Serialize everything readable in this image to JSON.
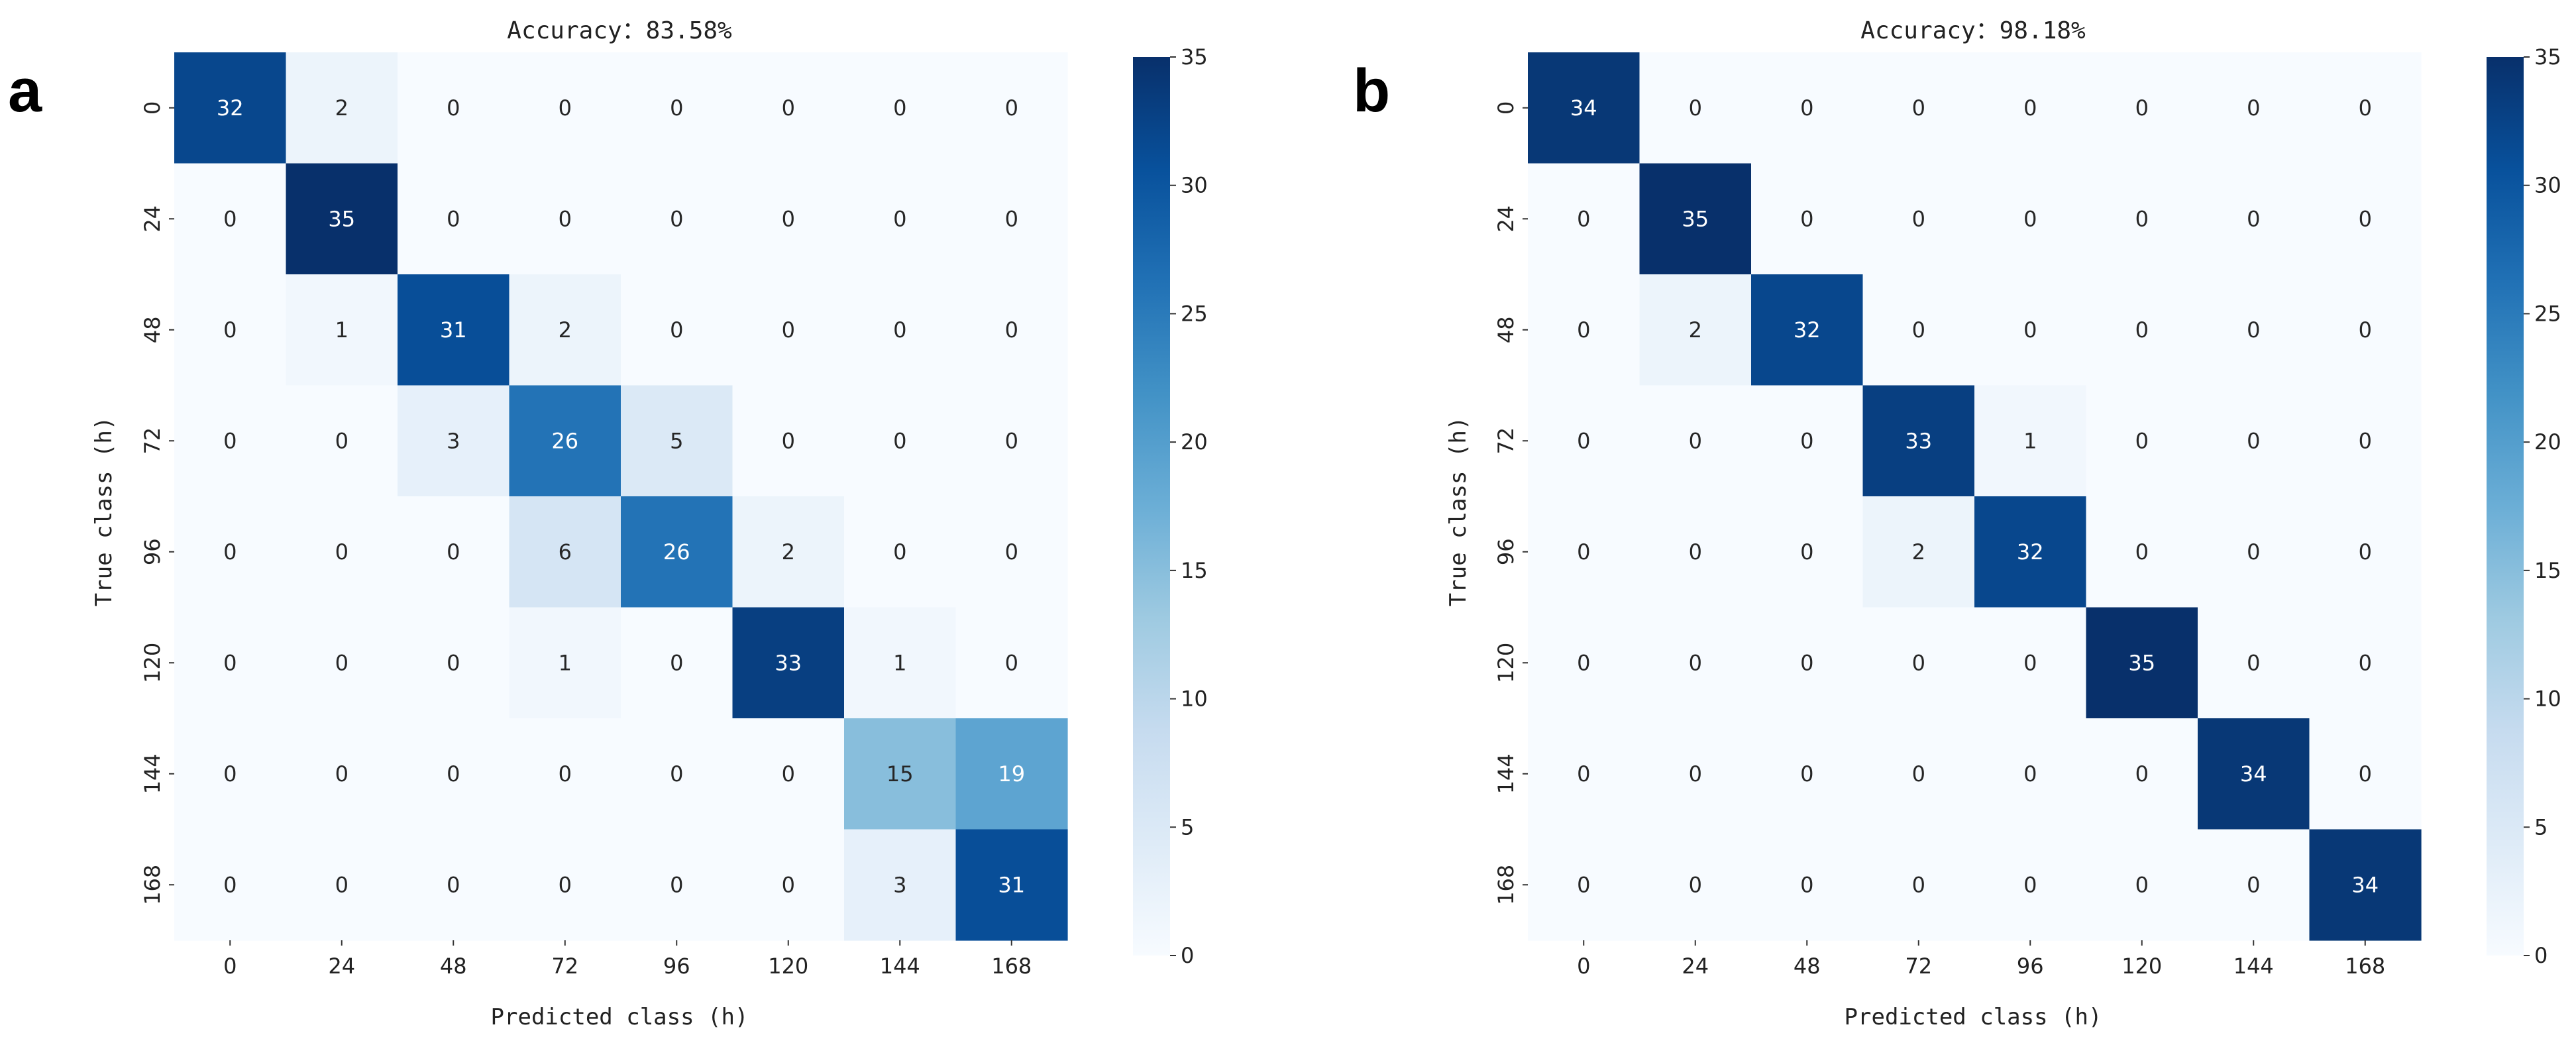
{
  "chart_data": [
    {
      "type": "heatmap",
      "panel_label": "a",
      "title": "Accuracy：83.58%",
      "xlabel": "Predicted class (h)",
      "ylabel": "True class (h)",
      "x_categories": [
        "0",
        "24",
        "48",
        "72",
        "96",
        "120",
        "144",
        "168"
      ],
      "y_categories": [
        "0",
        "24",
        "48",
        "72",
        "96",
        "120",
        "144",
        "168"
      ],
      "matrix": [
        [
          32,
          2,
          0,
          0,
          0,
          0,
          0,
          0
        ],
        [
          0,
          35,
          0,
          0,
          0,
          0,
          0,
          0
        ],
        [
          0,
          1,
          31,
          2,
          0,
          0,
          0,
          0
        ],
        [
          0,
          0,
          3,
          26,
          5,
          0,
          0,
          0
        ],
        [
          0,
          0,
          0,
          6,
          26,
          2,
          0,
          0
        ],
        [
          0,
          0,
          0,
          1,
          0,
          33,
          1,
          0
        ],
        [
          0,
          0,
          0,
          0,
          0,
          0,
          15,
          19
        ],
        [
          0,
          0,
          0,
          0,
          0,
          0,
          3,
          31
        ]
      ],
      "colorbar": {
        "range": [
          0,
          35
        ],
        "ticks": [
          "0",
          "5",
          "10",
          "15",
          "20",
          "25",
          "30",
          "35"
        ]
      }
    },
    {
      "type": "heatmap",
      "panel_label": "b",
      "title": "Accuracy：98.18%",
      "xlabel": "Predicted class (h)",
      "ylabel": "True class (h)",
      "x_categories": [
        "0",
        "24",
        "48",
        "72",
        "96",
        "120",
        "144",
        "168"
      ],
      "y_categories": [
        "0",
        "24",
        "48",
        "72",
        "96",
        "120",
        "144",
        "168"
      ],
      "matrix": [
        [
          34,
          0,
          0,
          0,
          0,
          0,
          0,
          0
        ],
        [
          0,
          35,
          0,
          0,
          0,
          0,
          0,
          0
        ],
        [
          0,
          2,
          32,
          0,
          0,
          0,
          0,
          0
        ],
        [
          0,
          0,
          0,
          33,
          1,
          0,
          0,
          0
        ],
        [
          0,
          0,
          0,
          2,
          32,
          0,
          0,
          0
        ],
        [
          0,
          0,
          0,
          0,
          0,
          35,
          0,
          0
        ],
        [
          0,
          0,
          0,
          0,
          0,
          0,
          34,
          0
        ],
        [
          0,
          0,
          0,
          0,
          0,
          0,
          0,
          34
        ]
      ],
      "colorbar": {
        "range": [
          0,
          35
        ],
        "ticks": [
          "0",
          "5",
          "10",
          "15",
          "20",
          "25",
          "30",
          "35"
        ]
      }
    }
  ],
  "colormap": "Blues",
  "colormap_stops": [
    "#f7fbff",
    "#deebf7",
    "#c6dbef",
    "#9ecae1",
    "#6baed6",
    "#4292c6",
    "#2171b5",
    "#08519c",
    "#08306b"
  ]
}
